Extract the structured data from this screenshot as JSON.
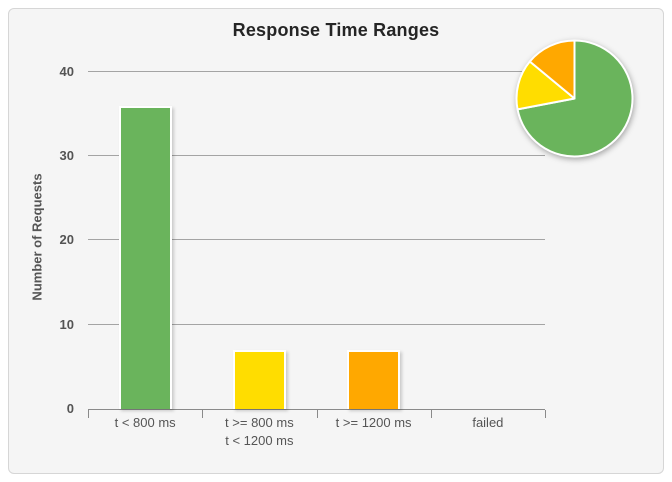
{
  "panel": {
    "title": "Response Time Ranges"
  },
  "colors": {
    "green": "#6ab45c",
    "yellow": "#ffdd00",
    "orange": "#ffa800",
    "grid": "#a4a4a4",
    "axis": "#8a8a8a",
    "tick_text": "#545454",
    "label_text": "#555555",
    "panel_bg": "#f5f5f5"
  },
  "chart_data": [
    {
      "type": "bar",
      "title": "Response Time Ranges",
      "xlabel": "",
      "ylabel": "Number of Requests",
      "categories": [
        [
          "t < 800 ms"
        ],
        [
          "t >= 800 ms",
          "t < 1200 ms"
        ],
        [
          "t >= 1200 ms"
        ],
        [
          "failed"
        ]
      ],
      "values": [
        36,
        7,
        7,
        0
      ],
      "bar_colors": [
        "#6ab45c",
        "#ffdd00",
        "#ffa800",
        "#cccccc"
      ],
      "yticks": [
        0,
        10,
        20,
        30,
        40
      ],
      "ylim": [
        0,
        42
      ],
      "grid": true,
      "legend": "none"
    },
    {
      "type": "pie",
      "position": "top-right-inset",
      "slices": [
        {
          "label": "t < 800 ms",
          "value": 36,
          "color": "#6ab45c"
        },
        {
          "label": "t >= 800 ms, t < 1200 ms",
          "value": 7,
          "color": "#ffdd00"
        },
        {
          "label": "t >= 1200 ms",
          "value": 7,
          "color": "#ffa800"
        }
      ],
      "start_angle_deg": -90,
      "direction": "clockwise",
      "slice_border_color": "#ffffff"
    }
  ]
}
